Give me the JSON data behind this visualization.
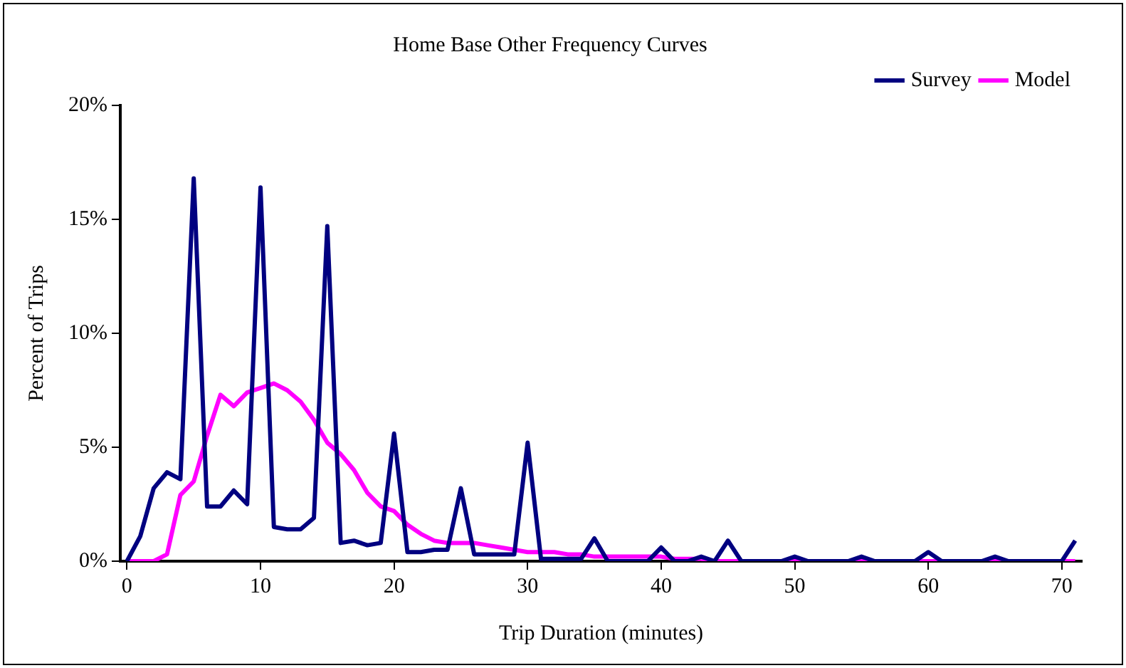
{
  "chart_data": {
    "type": "line",
    "title": "Home Base Other Frequency Curves",
    "xlabel": "Trip Duration (minutes)",
    "ylabel": "Percent of Trips",
    "x": [
      0,
      1,
      2,
      3,
      4,
      5,
      6,
      7,
      8,
      9,
      10,
      11,
      12,
      13,
      14,
      15,
      16,
      17,
      18,
      19,
      20,
      21,
      22,
      23,
      24,
      25,
      26,
      27,
      28,
      29,
      30,
      31,
      32,
      33,
      34,
      35,
      36,
      37,
      38,
      39,
      40,
      41,
      42,
      43,
      44,
      45,
      46,
      47,
      48,
      49,
      50,
      51,
      52,
      53,
      54,
      55,
      56,
      57,
      58,
      59,
      60,
      61,
      62,
      63,
      64,
      65,
      66,
      67,
      68,
      69,
      70,
      71
    ],
    "series": [
      {
        "name": "Survey",
        "color": "#000080",
        "values": [
          0,
          1.1,
          3.2,
          3.9,
          3.6,
          16.8,
          2.4,
          2.4,
          3.1,
          2.5,
          16.4,
          1.5,
          1.4,
          1.4,
          1.9,
          14.7,
          0.8,
          0.9,
          0.7,
          0.8,
          5.6,
          0.4,
          0.4,
          0.5,
          0.5,
          3.2,
          0.3,
          0.3,
          0.3,
          0.3,
          5.2,
          0.1,
          0.1,
          0.1,
          0.1,
          1.0,
          0,
          0,
          0,
          0,
          0.6,
          0,
          0,
          0.2,
          0,
          0.9,
          0,
          0,
          0,
          0,
          0.2,
          0,
          0,
          0,
          0,
          0.2,
          0,
          0,
          0,
          0,
          0.4,
          0,
          0,
          0,
          0,
          0.2,
          0,
          0,
          0,
          0,
          0,
          0.9
        ]
      },
      {
        "name": "Model",
        "color": "#ff00ff",
        "values": [
          0,
          0,
          0,
          0.3,
          2.9,
          3.5,
          5.5,
          7.3,
          6.8,
          7.4,
          7.6,
          7.8,
          7.5,
          7.0,
          6.2,
          5.2,
          4.7,
          4.0,
          3.0,
          2.4,
          2.2,
          1.6,
          1.2,
          0.9,
          0.8,
          0.8,
          0.8,
          0.7,
          0.6,
          0.5,
          0.4,
          0.4,
          0.4,
          0.3,
          0.3,
          0.2,
          0.2,
          0.2,
          0.2,
          0.2,
          0.2,
          0.1,
          0.1,
          0.1,
          0,
          0,
          0,
          0,
          0,
          0,
          0,
          0,
          0,
          0,
          0,
          0,
          0,
          0,
          0,
          0,
          0,
          0,
          0,
          0,
          0,
          0,
          0,
          0,
          0,
          0,
          0,
          0
        ]
      }
    ],
    "xlim": [
      -0.5,
      71.5
    ],
    "xticks": [
      0,
      10,
      20,
      30,
      40,
      50,
      60,
      70
    ],
    "ylim": [
      0,
      20
    ],
    "yticks": [
      {
        "value": 0,
        "label": "0%"
      },
      {
        "value": 5,
        "label": "5%"
      },
      {
        "value": 10,
        "label": "10%"
      },
      {
        "value": 15,
        "label": "15%"
      },
      {
        "value": 20,
        "label": "20%"
      }
    ],
    "grid": false,
    "legend": "top right",
    "marker": "none",
    "line_style": "solid"
  }
}
